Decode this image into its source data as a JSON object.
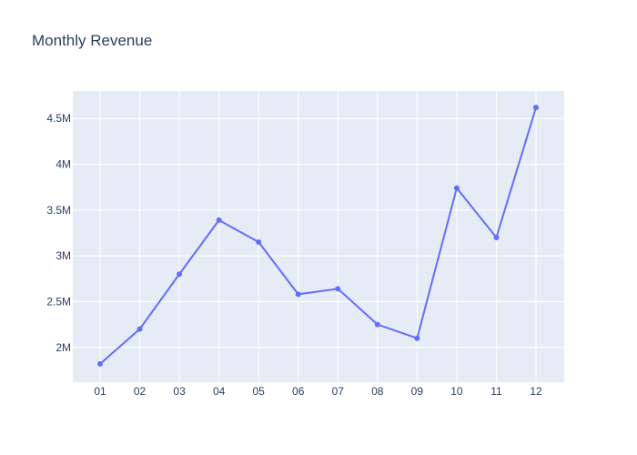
{
  "chart_data": {
    "type": "line",
    "title": "Monthly Revenue",
    "xlabel": "",
    "ylabel": "",
    "categories": [
      "01",
      "02",
      "03",
      "04",
      "05",
      "06",
      "07",
      "08",
      "09",
      "10",
      "11",
      "12"
    ],
    "series": [
      {
        "values": [
          1820000,
          2200000,
          2800000,
          3390000,
          3150000,
          2580000,
          2640000,
          2250000,
          2100000,
          3740000,
          3200000,
          4620000
        ],
        "color": "#636efa"
      }
    ],
    "ylim": [
      1620000,
      4800000
    ],
    "y_ticks": [
      {
        "value": 2000000,
        "label": "2M"
      },
      {
        "value": 2500000,
        "label": "2.5M"
      },
      {
        "value": 3000000,
        "label": "3M"
      },
      {
        "value": 3500000,
        "label": "3.5M"
      },
      {
        "value": 4000000,
        "label": "4M"
      },
      {
        "value": 4500000,
        "label": "4.5M"
      }
    ],
    "grid": true,
    "legend": "none",
    "colors": {
      "plot_background": "#e5ecf6",
      "grid": "#ffffff",
      "text": "#2a3f5f",
      "line": "#636efa"
    }
  }
}
